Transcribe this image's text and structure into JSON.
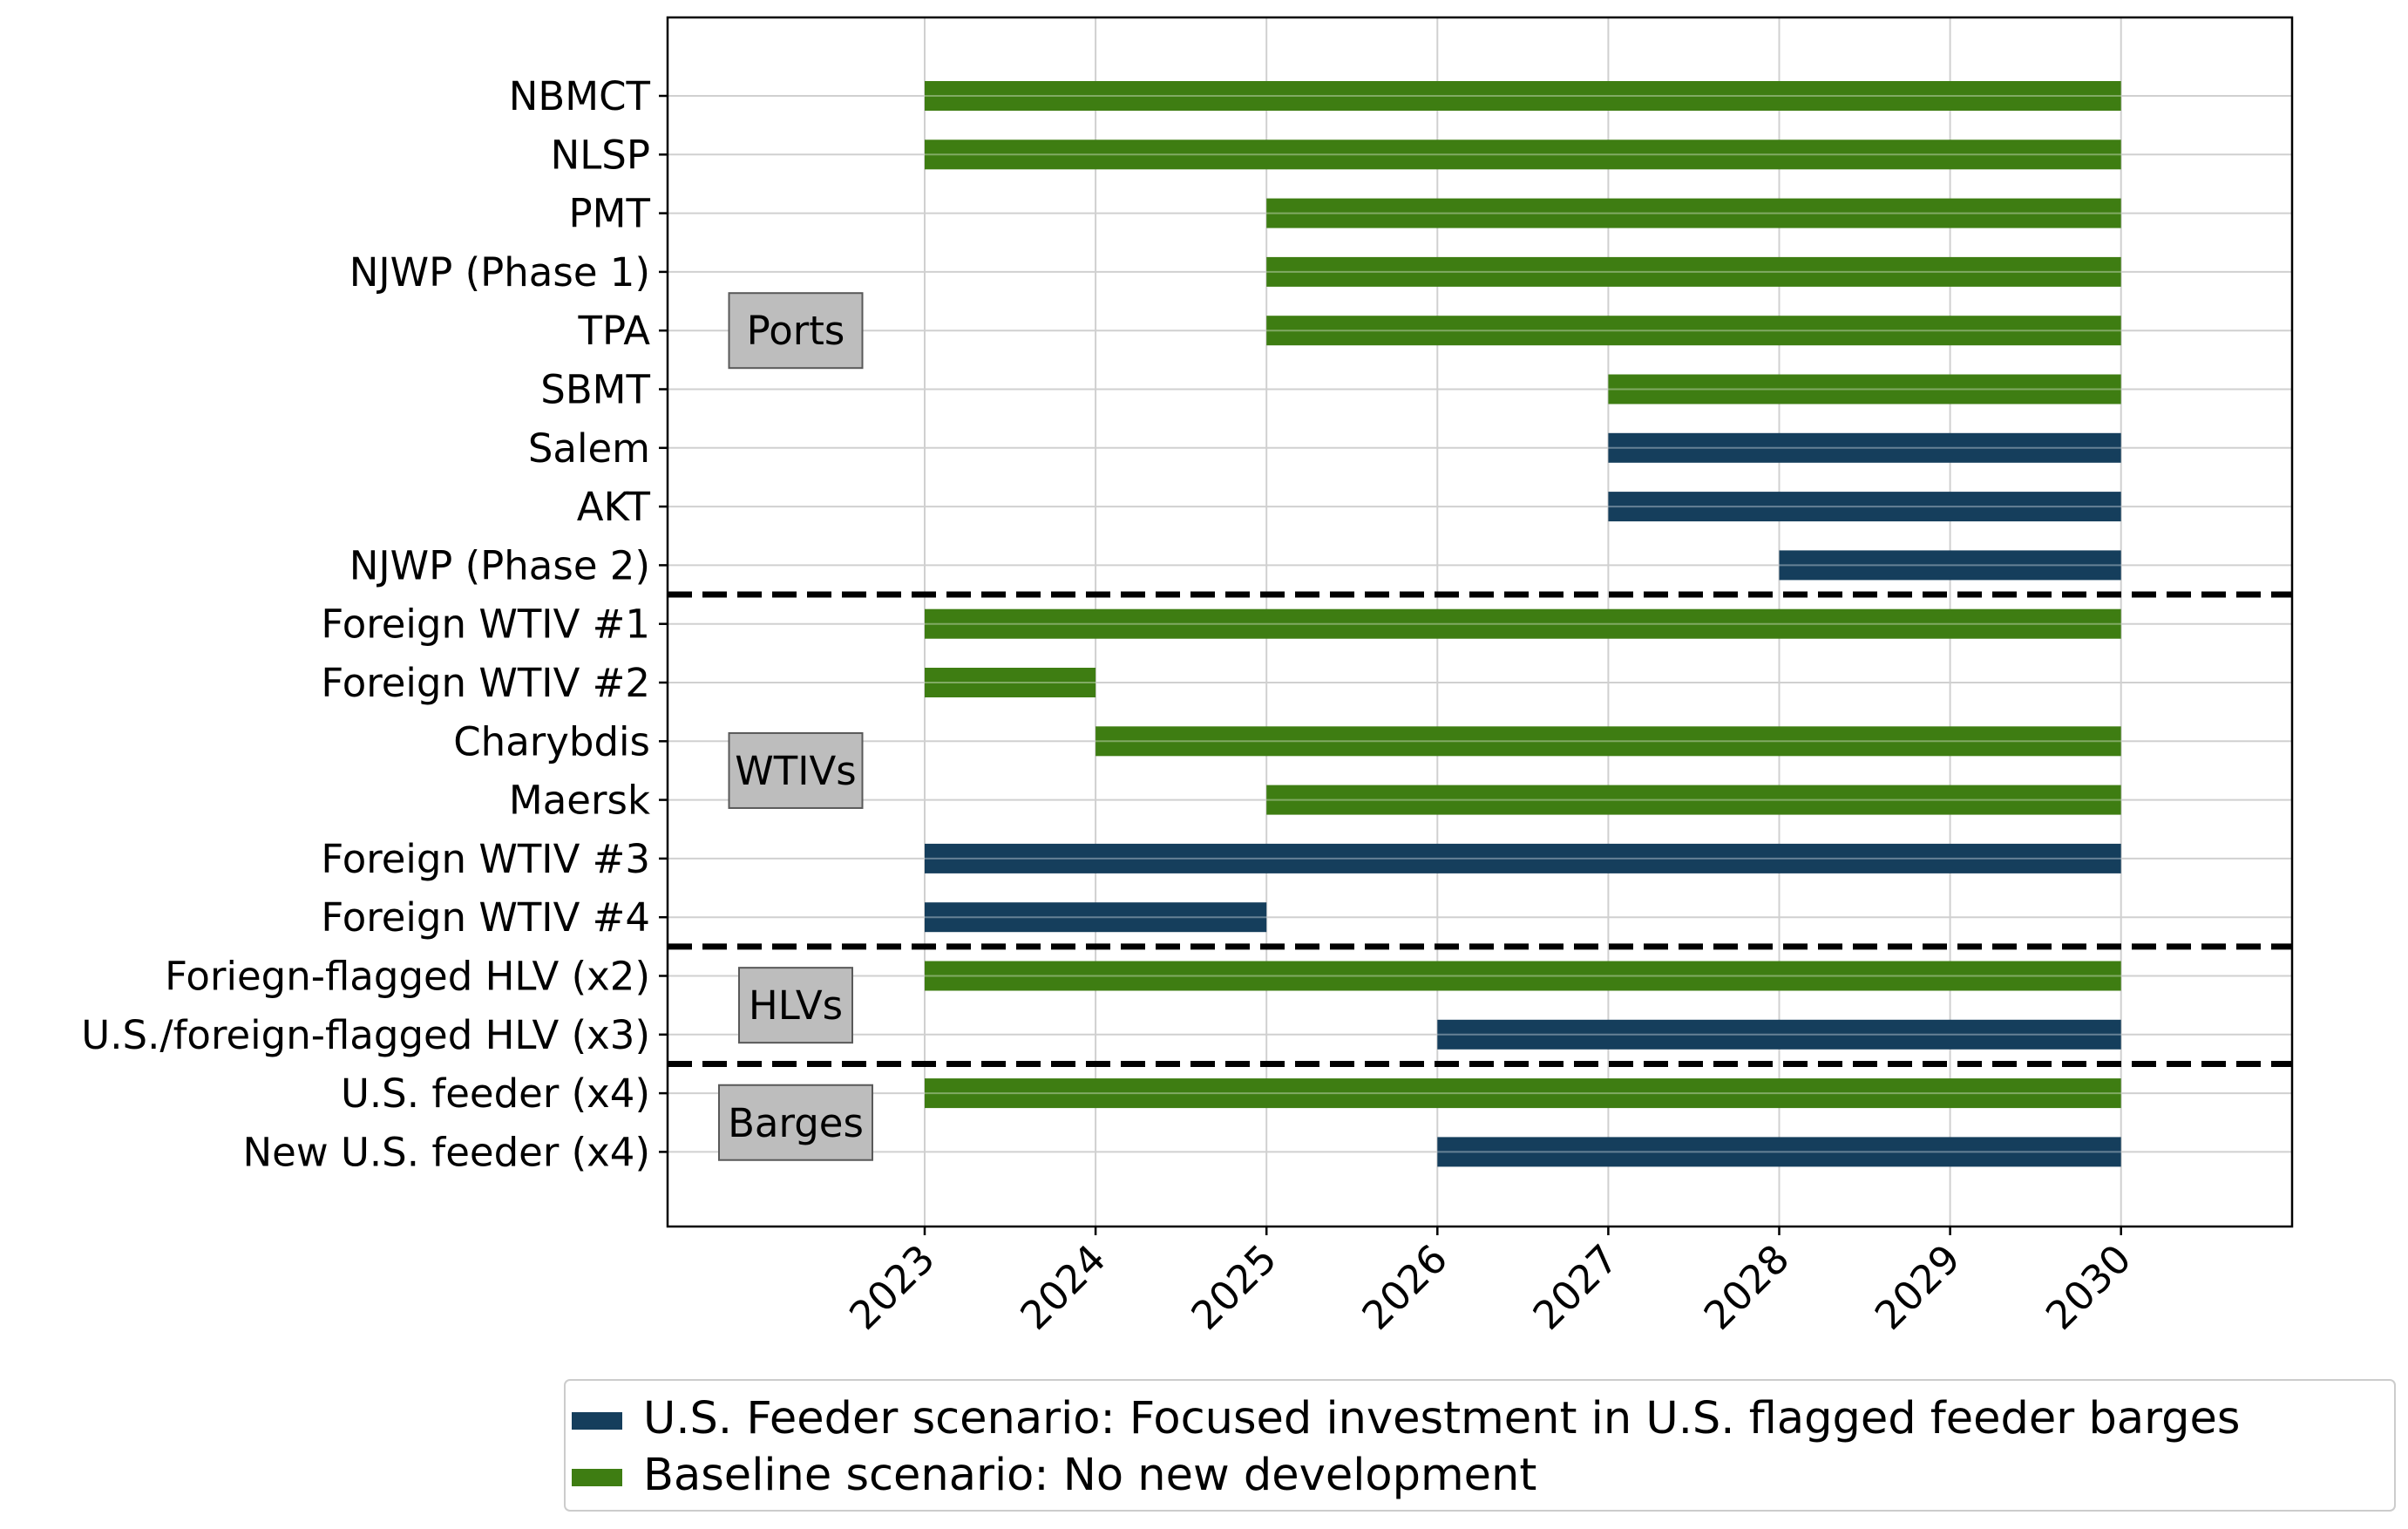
{
  "chart_data": {
    "type": "gantt",
    "title": "",
    "xlabel": "",
    "ylabel": "",
    "x_ticks": [
      "2023",
      "2024",
      "2025",
      "2026",
      "2027",
      "2028",
      "2029",
      "2030"
    ],
    "xlim": [
      2021.5,
      2031
    ],
    "grid": true,
    "legend": {
      "placement": "bottom-right",
      "entries": [
        {
          "name": "U.S. Feeder scenario: Focused investment in U.S. flagged feeder barges",
          "color": "#153e5c"
        },
        {
          "name": "Baseline scenario: No new development",
          "color": "#3e7d12"
        }
      ]
    },
    "rows": [
      {
        "label": "NBMCT",
        "start": 2023,
        "end": 2030,
        "series": 1
      },
      {
        "label": "NLSP",
        "start": 2023,
        "end": 2030,
        "series": 1
      },
      {
        "label": "PMT",
        "start": 2025,
        "end": 2030,
        "series": 1
      },
      {
        "label": "NJWP (Phase 1)",
        "start": 2025,
        "end": 2030,
        "series": 1
      },
      {
        "label": "TPA",
        "start": 2025,
        "end": 2030,
        "series": 1
      },
      {
        "label": "SBMT",
        "start": 2027,
        "end": 2030,
        "series": 1
      },
      {
        "label": "Salem",
        "start": 2027,
        "end": 2030,
        "series": 0
      },
      {
        "label": "AKT",
        "start": 2027,
        "end": 2030,
        "series": 0
      },
      {
        "label": "NJWP (Phase 2)",
        "start": 2028,
        "end": 2030,
        "series": 0
      },
      {
        "label": "Foreign WTIV #1",
        "start": 2023,
        "end": 2030,
        "series": 1
      },
      {
        "label": "Foreign WTIV #2",
        "start": 2023,
        "end": 2024,
        "series": 1
      },
      {
        "label": "Charybdis",
        "start": 2024,
        "end": 2030,
        "series": 1
      },
      {
        "label": "Maersk",
        "start": 2025,
        "end": 2030,
        "series": 1
      },
      {
        "label": "Foreign WTIV #3",
        "start": 2023,
        "end": 2030,
        "series": 0
      },
      {
        "label": "Foreign WTIV #4",
        "start": 2023,
        "end": 2025,
        "series": 0
      },
      {
        "label": "Foriegn-flagged HLV (x2)",
        "start": 2023,
        "end": 2030,
        "series": 1
      },
      {
        "label": "U.S./foreign-flagged HLV (x3)",
        "start": 2026,
        "end": 2030,
        "series": 0
      },
      {
        "label": "U.S. feeder (x4)",
        "start": 2023,
        "end": 2030,
        "series": 1
      },
      {
        "label": "New U.S. feeder (x4)",
        "start": 2026,
        "end": 2030,
        "series": 0
      }
    ],
    "groups": [
      {
        "label": "Ports",
        "first_row": 0,
        "last_row": 8
      },
      {
        "label": "WTIVs",
        "first_row": 9,
        "last_row": 14
      },
      {
        "label": "HLVs",
        "first_row": 15,
        "last_row": 16
      },
      {
        "label": "Barges",
        "first_row": 17,
        "last_row": 18
      }
    ],
    "separators_after_row": [
      8,
      14,
      16
    ]
  }
}
